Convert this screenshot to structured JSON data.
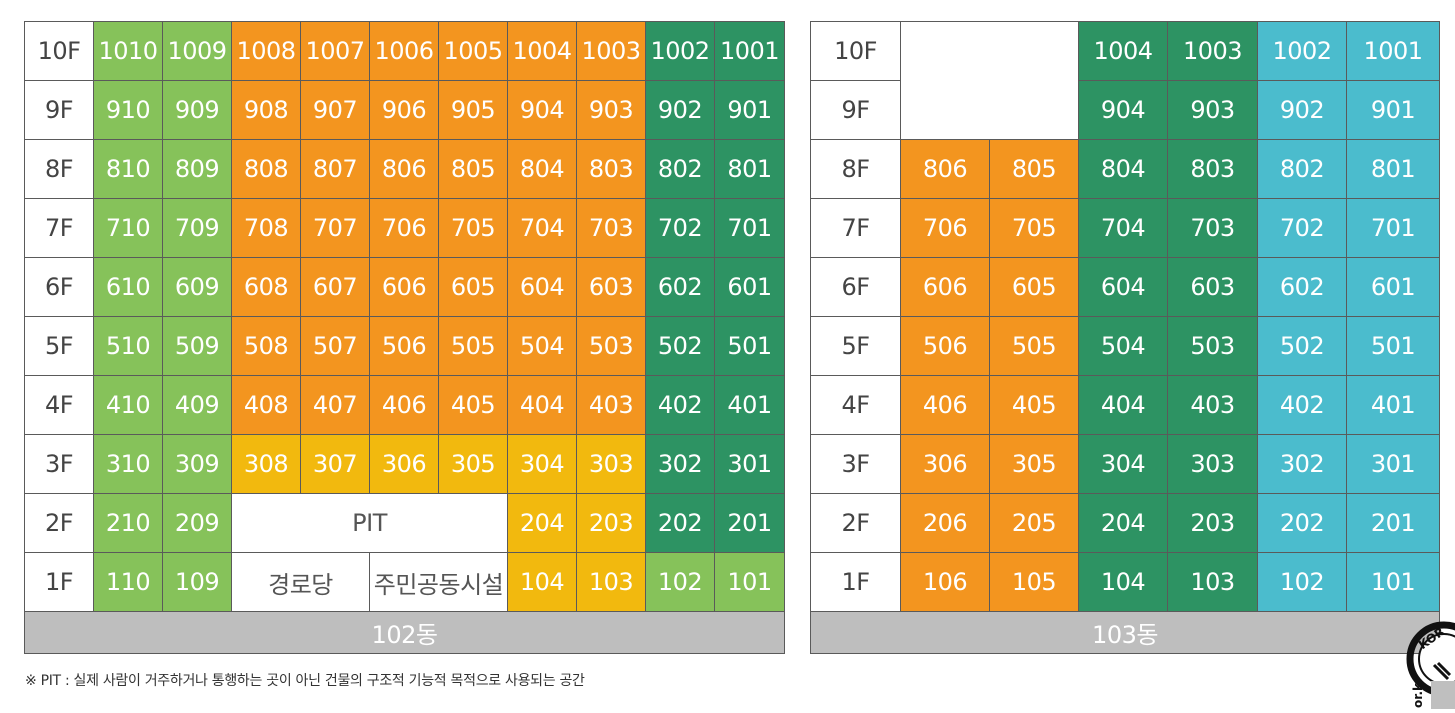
{
  "colors": {
    "light_green": "#86c25a",
    "orange": "#f3951f",
    "yellow": "#f2b90e",
    "dark_green": "#2d9363",
    "cyan": "#4bbccd",
    "footer_gray": "#bebebe"
  },
  "building_102": {
    "name": "102동",
    "rows": [
      {
        "floor": "10F",
        "cells": [
          {
            "t": "1010",
            "c": "lg"
          },
          {
            "t": "1009",
            "c": "lg"
          },
          {
            "t": "1008",
            "c": "or"
          },
          {
            "t": "1007",
            "c": "or"
          },
          {
            "t": "1006",
            "c": "or"
          },
          {
            "t": "1005",
            "c": "or"
          },
          {
            "t": "1004",
            "c": "or"
          },
          {
            "t": "1003",
            "c": "or"
          },
          {
            "t": "1002",
            "c": "dg"
          },
          {
            "t": "1001",
            "c": "dg"
          }
        ]
      },
      {
        "floor": "9F",
        "cells": [
          {
            "t": "910",
            "c": "lg"
          },
          {
            "t": "909",
            "c": "lg"
          },
          {
            "t": "908",
            "c": "or"
          },
          {
            "t": "907",
            "c": "or"
          },
          {
            "t": "906",
            "c": "or"
          },
          {
            "t": "905",
            "c": "or"
          },
          {
            "t": "904",
            "c": "or"
          },
          {
            "t": "903",
            "c": "or"
          },
          {
            "t": "902",
            "c": "dg"
          },
          {
            "t": "901",
            "c": "dg"
          }
        ]
      },
      {
        "floor": "8F",
        "cells": [
          {
            "t": "810",
            "c": "lg"
          },
          {
            "t": "809",
            "c": "lg"
          },
          {
            "t": "808",
            "c": "or"
          },
          {
            "t": "807",
            "c": "or"
          },
          {
            "t": "806",
            "c": "or"
          },
          {
            "t": "805",
            "c": "or"
          },
          {
            "t": "804",
            "c": "or"
          },
          {
            "t": "803",
            "c": "or"
          },
          {
            "t": "802",
            "c": "dg"
          },
          {
            "t": "801",
            "c": "dg"
          }
        ]
      },
      {
        "floor": "7F",
        "cells": [
          {
            "t": "710",
            "c": "lg"
          },
          {
            "t": "709",
            "c": "lg"
          },
          {
            "t": "708",
            "c": "or"
          },
          {
            "t": "707",
            "c": "or"
          },
          {
            "t": "706",
            "c": "or"
          },
          {
            "t": "705",
            "c": "or"
          },
          {
            "t": "704",
            "c": "or"
          },
          {
            "t": "703",
            "c": "or"
          },
          {
            "t": "702",
            "c": "dg"
          },
          {
            "t": "701",
            "c": "dg"
          }
        ]
      },
      {
        "floor": "6F",
        "cells": [
          {
            "t": "610",
            "c": "lg"
          },
          {
            "t": "609",
            "c": "lg"
          },
          {
            "t": "608",
            "c": "or"
          },
          {
            "t": "607",
            "c": "or"
          },
          {
            "t": "606",
            "c": "or"
          },
          {
            "t": "605",
            "c": "or"
          },
          {
            "t": "604",
            "c": "or"
          },
          {
            "t": "603",
            "c": "or"
          },
          {
            "t": "602",
            "c": "dg"
          },
          {
            "t": "601",
            "c": "dg"
          }
        ]
      },
      {
        "floor": "5F",
        "cells": [
          {
            "t": "510",
            "c": "lg"
          },
          {
            "t": "509",
            "c": "lg"
          },
          {
            "t": "508",
            "c": "or"
          },
          {
            "t": "507",
            "c": "or"
          },
          {
            "t": "506",
            "c": "or"
          },
          {
            "t": "505",
            "c": "or"
          },
          {
            "t": "504",
            "c": "or"
          },
          {
            "t": "503",
            "c": "or"
          },
          {
            "t": "502",
            "c": "dg"
          },
          {
            "t": "501",
            "c": "dg"
          }
        ]
      },
      {
        "floor": "4F",
        "cells": [
          {
            "t": "410",
            "c": "lg"
          },
          {
            "t": "409",
            "c": "lg"
          },
          {
            "t": "408",
            "c": "or"
          },
          {
            "t": "407",
            "c": "or"
          },
          {
            "t": "406",
            "c": "or"
          },
          {
            "t": "405",
            "c": "or"
          },
          {
            "t": "404",
            "c": "or"
          },
          {
            "t": "403",
            "c": "or"
          },
          {
            "t": "402",
            "c": "dg"
          },
          {
            "t": "401",
            "c": "dg"
          }
        ]
      },
      {
        "floor": "3F",
        "cells": [
          {
            "t": "310",
            "c": "lg"
          },
          {
            "t": "309",
            "c": "lg"
          },
          {
            "t": "308",
            "c": "ye"
          },
          {
            "t": "307",
            "c": "ye"
          },
          {
            "t": "306",
            "c": "ye"
          },
          {
            "t": "305",
            "c": "ye"
          },
          {
            "t": "304",
            "c": "ye"
          },
          {
            "t": "303",
            "c": "ye"
          },
          {
            "t": "302",
            "c": "dg"
          },
          {
            "t": "301",
            "c": "dg"
          }
        ]
      },
      {
        "floor": "2F",
        "cells": [
          {
            "t": "210",
            "c": "lg"
          },
          {
            "t": "209",
            "c": "lg"
          },
          {
            "t": "PIT",
            "c": "wh",
            "span": 4
          },
          {
            "t": "204",
            "c": "ye"
          },
          {
            "t": "203",
            "c": "ye"
          },
          {
            "t": "202",
            "c": "dg"
          },
          {
            "t": "201",
            "c": "dg"
          }
        ]
      },
      {
        "floor": "1F",
        "cells": [
          {
            "t": "110",
            "c": "lg"
          },
          {
            "t": "109",
            "c": "lg"
          },
          {
            "t": "경로당",
            "c": "wh",
            "span": 2
          },
          {
            "t": "주민공동시설",
            "c": "wh",
            "span": 2
          },
          {
            "t": "104",
            "c": "ye"
          },
          {
            "t": "103",
            "c": "ye"
          },
          {
            "t": "102",
            "c": "lg"
          },
          {
            "t": "101",
            "c": "lg"
          }
        ]
      }
    ]
  },
  "building_103": {
    "name": "103동",
    "rows": [
      {
        "floor": "10F",
        "cells": [
          {
            "t": "",
            "c": "blank",
            "span": 2
          },
          {
            "t": "1004",
            "c": "dg"
          },
          {
            "t": "1003",
            "c": "dg"
          },
          {
            "t": "1002",
            "c": "cy"
          },
          {
            "t": "1001",
            "c": "cy"
          }
        ]
      },
      {
        "floor": "9F",
        "cells": [
          {
            "t": "",
            "c": "blank",
            "span": 2
          },
          {
            "t": "904",
            "c": "dg"
          },
          {
            "t": "903",
            "c": "dg"
          },
          {
            "t": "902",
            "c": "cy"
          },
          {
            "t": "901",
            "c": "cy"
          }
        ]
      },
      {
        "floor": "8F",
        "cells": [
          {
            "t": "806",
            "c": "or"
          },
          {
            "t": "805",
            "c": "or"
          },
          {
            "t": "804",
            "c": "dg"
          },
          {
            "t": "803",
            "c": "dg"
          },
          {
            "t": "802",
            "c": "cy"
          },
          {
            "t": "801",
            "c": "cy"
          }
        ]
      },
      {
        "floor": "7F",
        "cells": [
          {
            "t": "706",
            "c": "or"
          },
          {
            "t": "705",
            "c": "or"
          },
          {
            "t": "704",
            "c": "dg"
          },
          {
            "t": "703",
            "c": "dg"
          },
          {
            "t": "702",
            "c": "cy"
          },
          {
            "t": "701",
            "c": "cy"
          }
        ]
      },
      {
        "floor": "6F",
        "cells": [
          {
            "t": "606",
            "c": "or"
          },
          {
            "t": "605",
            "c": "or"
          },
          {
            "t": "604",
            "c": "dg"
          },
          {
            "t": "603",
            "c": "dg"
          },
          {
            "t": "602",
            "c": "cy"
          },
          {
            "t": "601",
            "c": "cy"
          }
        ]
      },
      {
        "floor": "5F",
        "cells": [
          {
            "t": "506",
            "c": "or"
          },
          {
            "t": "505",
            "c": "or"
          },
          {
            "t": "504",
            "c": "dg"
          },
          {
            "t": "503",
            "c": "dg"
          },
          {
            "t": "502",
            "c": "cy"
          },
          {
            "t": "501",
            "c": "cy"
          }
        ]
      },
      {
        "floor": "4F",
        "cells": [
          {
            "t": "406",
            "c": "or"
          },
          {
            "t": "405",
            "c": "or"
          },
          {
            "t": "404",
            "c": "dg"
          },
          {
            "t": "403",
            "c": "dg"
          },
          {
            "t": "402",
            "c": "cy"
          },
          {
            "t": "401",
            "c": "cy"
          }
        ]
      },
      {
        "floor": "3F",
        "cells": [
          {
            "t": "306",
            "c": "or"
          },
          {
            "t": "305",
            "c": "or"
          },
          {
            "t": "304",
            "c": "dg"
          },
          {
            "t": "303",
            "c": "dg"
          },
          {
            "t": "302",
            "c": "cy"
          },
          {
            "t": "301",
            "c": "cy"
          }
        ]
      },
      {
        "floor": "2F",
        "cells": [
          {
            "t": "206",
            "c": "or"
          },
          {
            "t": "205",
            "c": "or"
          },
          {
            "t": "204",
            "c": "dg"
          },
          {
            "t": "203",
            "c": "dg"
          },
          {
            "t": "202",
            "c": "cy"
          },
          {
            "t": "201",
            "c": "cy"
          }
        ]
      },
      {
        "floor": "1F",
        "cells": [
          {
            "t": "106",
            "c": "or"
          },
          {
            "t": "105",
            "c": "or"
          },
          {
            "t": "104",
            "c": "dg"
          },
          {
            "t": "103",
            "c": "dg"
          },
          {
            "t": "102",
            "c": "cy"
          },
          {
            "t": "101",
            "c": "cy"
          }
        ]
      }
    ]
  },
  "note": "※ PIT : 실제 사람이 거주하거나 통행하는 곳이 아닌 건물의 구조적 기능적 목적으로 사용되는 공간",
  "logo": {
    "text": "KOR",
    "subtext": "or.kr"
  }
}
